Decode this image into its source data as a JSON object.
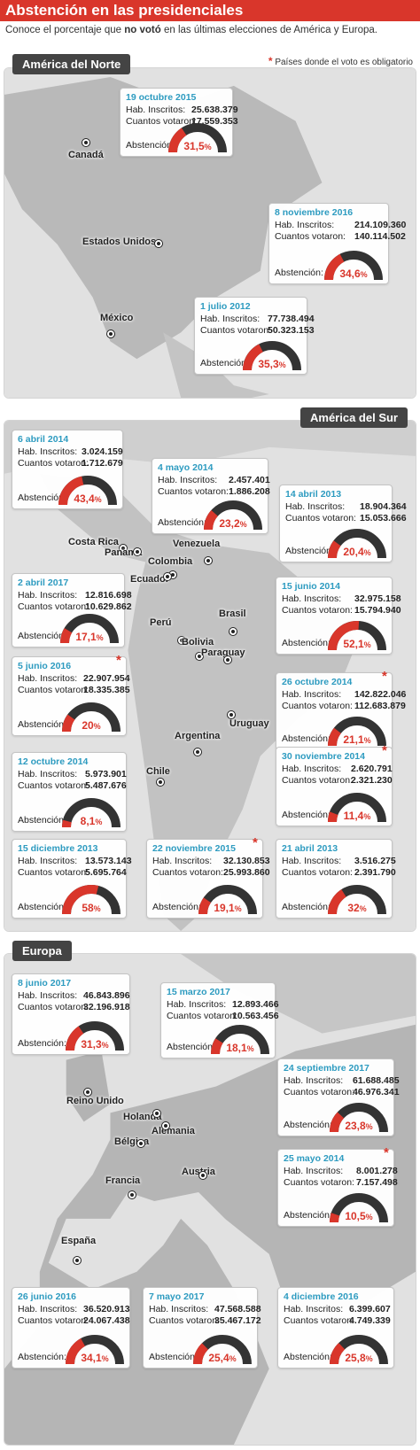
{
  "header": {
    "title": "Abstención en las presidenciales",
    "subtitle_pre": "Conoce el porcentaje que ",
    "subtitle_bold": "no votó",
    "subtitle_post": " en las últimas elecciones de América y Europa.",
    "legend_star": "*",
    "legend_text": "Países donde el voto es obligatorio"
  },
  "labels": {
    "inscritos": "Hab. Inscritos:",
    "votaron": "Cuantos votaron:",
    "abstencion": "Abstención:"
  },
  "colors": {
    "accent": "#d9362b",
    "date": "#2d9bc0",
    "gauge_dark": "#333333"
  },
  "regions": [
    {
      "name": "América del Norte"
    },
    {
      "name": "América del Sur"
    },
    {
      "name": "Europa"
    }
  ],
  "countries": [
    {
      "country": "Canadá",
      "date": "19 octubre 2015",
      "inscritos": "25.638.379",
      "votaron": "17.559.353",
      "pct": "31,5",
      "mandatory": false
    },
    {
      "country": "Estados Unidos",
      "date": "8 noviembre 2016",
      "inscritos": "214.109.360",
      "votaron": "140.114.502",
      "pct": "34,6",
      "mandatory": false
    },
    {
      "country": "México",
      "date": "1 julio 2012",
      "inscritos": "77.738.494",
      "votaron": "50.323.153",
      "pct": "35,3",
      "mandatory": false
    },
    {
      "country": "Costa Rica",
      "date": "6 abril 2014",
      "inscritos": "3.024.159",
      "votaron": "1.712.679",
      "pct": "43,4",
      "mandatory": false
    },
    {
      "country": "Panamá",
      "date": "4 mayo 2014",
      "inscritos": "2.457.401",
      "votaron": "1.886.208",
      "pct": "23,2",
      "mandatory": false
    },
    {
      "country": "Venezuela",
      "date": "14 abril 2013",
      "inscritos": "18.904.364",
      "votaron": "15.053.666",
      "pct": "20,4",
      "mandatory": false
    },
    {
      "country": "Ecuador",
      "date": "2 abril 2017",
      "inscritos": "12.816.698",
      "votaron": "10.629.862",
      "pct": "17,1",
      "mandatory": false
    },
    {
      "country": "Brasil",
      "date": "15 junio 2014",
      "inscritos": "32.975.158",
      "votaron": "15.794.940",
      "pct": "52,1",
      "mandatory": false
    },
    {
      "country": "Perú",
      "date": "5 junio 2016",
      "inscritos": "22.907.954",
      "votaron": "18.335.385",
      "pct": "20",
      "mandatory": true
    },
    {
      "country": "Paraguay",
      "date": "26 octubre 2014",
      "inscritos": "142.822.046",
      "votaron": "112.683.879",
      "pct": "21,1",
      "mandatory": true
    },
    {
      "country": "Bolivia",
      "date": "12 octubre 2014",
      "inscritos": "5.973.901",
      "votaron": "5.487.676",
      "pct": "8,1",
      "mandatory": false
    },
    {
      "country": "Uruguay",
      "date": "30 noviembre 2014",
      "inscritos": "2.620.791",
      "votaron": "2.321.230",
      "pct": "11,4",
      "mandatory": true
    },
    {
      "country": "Chile",
      "date": "15 diciembre 2013",
      "inscritos": "13.573.143",
      "votaron": "5.695.764",
      "pct": "58",
      "mandatory": false
    },
    {
      "country": "Argentina",
      "date": "22 noviembre 2015",
      "inscritos": "32.130.853",
      "votaron": "25.993.860",
      "pct": "19,1",
      "mandatory": true
    },
    {
      "country": "Paraguay",
      "date": "21 abril 2013",
      "inscritos": "3.516.275",
      "votaron": "2.391.790",
      "pct": "32",
      "mandatory": false
    },
    {
      "country": "Reino Unido",
      "date": "8 junio 2017",
      "inscritos": "46.843.896",
      "votaron": "32.196.918",
      "pct": "31,3",
      "mandatory": false
    },
    {
      "country": "Holanda",
      "date": "15 marzo 2017",
      "inscritos": "12.893.466",
      "votaron": "10.563.456",
      "pct": "18,1",
      "mandatory": false
    },
    {
      "country": "Alemania",
      "date": "24 septiembre 2017",
      "inscritos": "61.688.485",
      "votaron": "46.976.341",
      "pct": "23,8",
      "mandatory": false
    },
    {
      "country": "Bélgica",
      "date": "25 mayo 2014",
      "inscritos": "8.001.278",
      "votaron": "7.157.498",
      "pct": "10,5",
      "mandatory": true
    },
    {
      "country": "España",
      "date": "26 junio 2016",
      "inscritos": "36.520.913",
      "votaron": "24.067.438",
      "pct": "34,1",
      "mandatory": false
    },
    {
      "country": "Francia",
      "date": "7 mayo 2017",
      "inscritos": "47.568.588",
      "votaron": "35.467.172",
      "pct": "25,4",
      "mandatory": false
    },
    {
      "country": "Austria",
      "date": "4 diciembre 2016",
      "inscritos": "6.399.607",
      "votaron": "4.749.339",
      "pct": "25,8",
      "mandatory": false
    }
  ],
  "city_labels": [
    "Canadá",
    "Estados Unidos",
    "México",
    "Costa Rica",
    "Panamá",
    "Venezuela",
    "Colombia",
    "Ecuador",
    "Perú",
    "Bolivia",
    "Brasil",
    "Paraguay",
    "Uruguay",
    "Argentina",
    "Chile",
    "Reino Unido",
    "Holanda",
    "Bélgica",
    "Alemania",
    "Francia",
    "Austria",
    "España"
  ]
}
